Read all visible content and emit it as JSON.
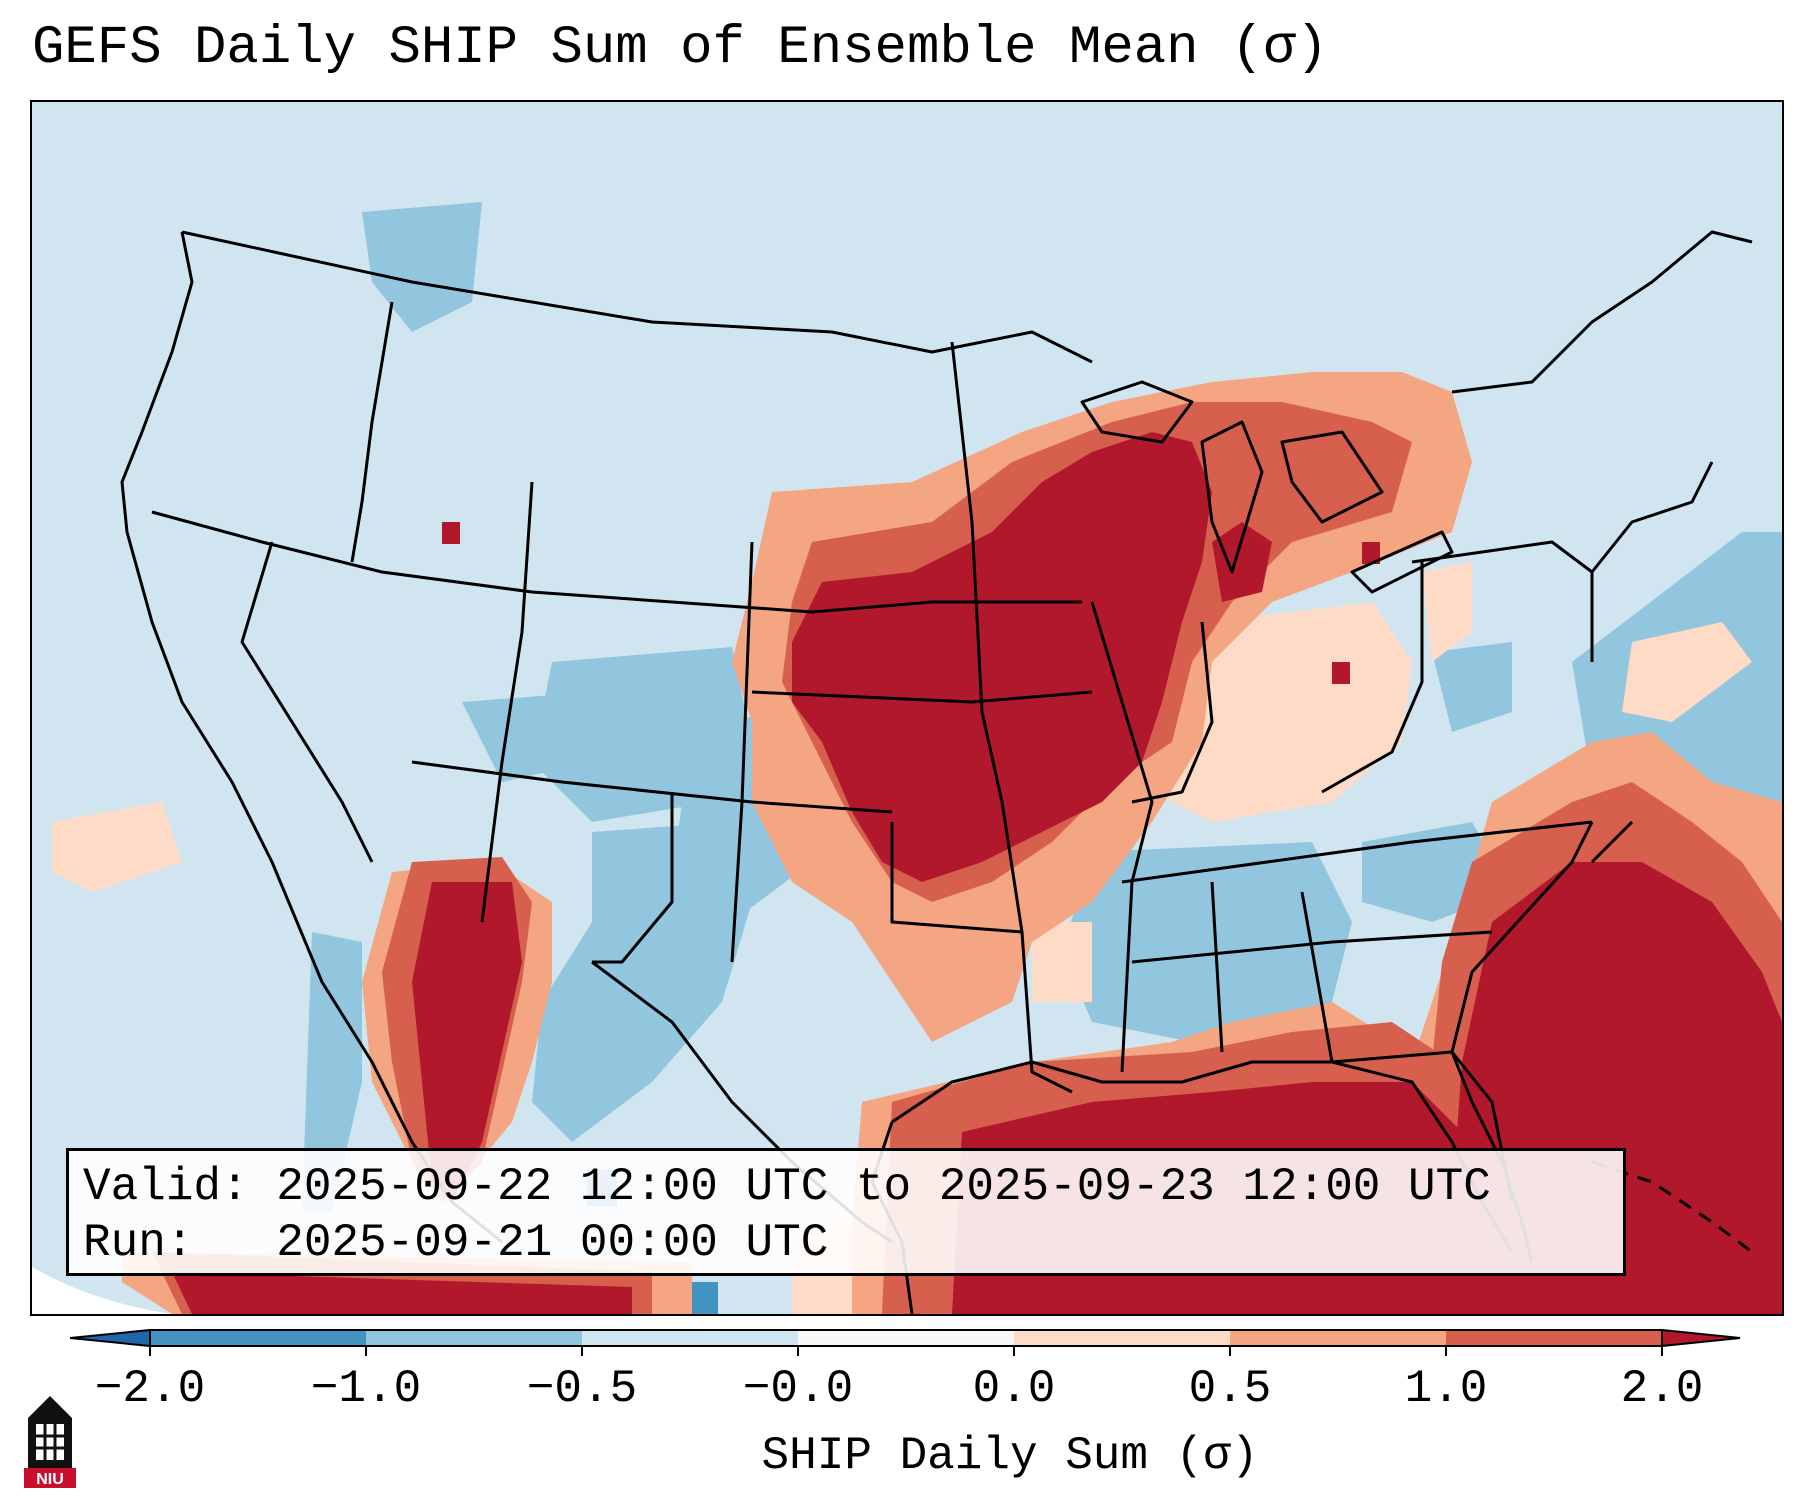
{
  "title": "GEFS Daily SHIP Sum of Ensemble Mean (σ)",
  "info": {
    "valid_line": "Valid: 2025-09-22 12:00 UTC to 2025-09-23 12:00 UTC",
    "run_line": "Run:   2025-09-21 00:00 UTC"
  },
  "colorbar": {
    "label": "SHIP Daily Sum (σ)",
    "ticks": [
      "−2.0",
      "−1.0",
      "−0.5",
      "−0.0",
      "0.0",
      "0.5",
      "1.0",
      "2.0"
    ],
    "colors": [
      "#4393c3",
      "#92c5de",
      "#d1e5f0",
      "#f7f7f7",
      "#fddbc7",
      "#f4a582",
      "#d6604d",
      "#b2182b"
    ],
    "extend_low_color": "#2166ac",
    "extend_high_color": "#b2182b"
  },
  "map": {
    "background_color": "#d1e5f0",
    "region": "Contiguous United States"
  },
  "logo": {
    "text": "NIU"
  }
}
